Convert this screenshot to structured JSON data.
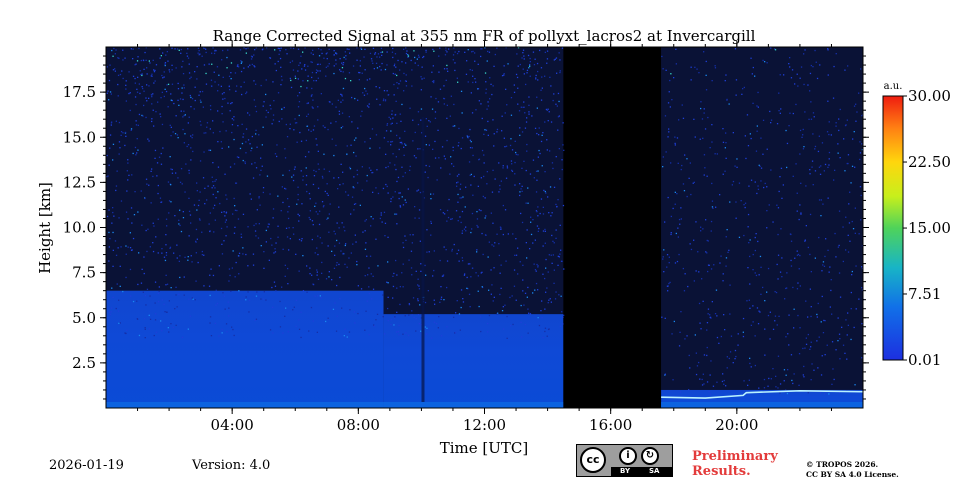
{
  "chart_data": {
    "type": "heatmap",
    "title": "Range Corrected Signal at 355 nm FR of pollyxt_lacros2 at Invercargill",
    "xlabel": "Time [UTC]",
    "ylabel": "Height [km]",
    "xlim_hours": [
      0,
      24
    ],
    "ylim_km": [
      0,
      20
    ],
    "x_ticks": [
      {
        "h": 4,
        "label": "04:00"
      },
      {
        "h": 8,
        "label": "08:00"
      },
      {
        "h": 12,
        "label": "12:00"
      },
      {
        "h": 16,
        "label": "16:00"
      },
      {
        "h": 20,
        "label": "20:00"
      }
    ],
    "y_ticks": [
      {
        "v": 2.5,
        "label": "2.5"
      },
      {
        "v": 5.0,
        "label": "5.0"
      },
      {
        "v": 7.5,
        "label": "7.5"
      },
      {
        "v": 10.0,
        "label": "10.0"
      },
      {
        "v": 12.5,
        "label": "12.5"
      },
      {
        "v": 15.0,
        "label": "15.0"
      },
      {
        "v": 17.5,
        "label": "17.5"
      }
    ],
    "colorbar": {
      "unit": "a.u.",
      "range": [
        0.01,
        30.0
      ],
      "ticks": [
        {
          "v": 0.01,
          "label": "0.01"
        },
        {
          "v": 7.51,
          "label": "7.51"
        },
        {
          "v": 15.0,
          "label": "15.00"
        },
        {
          "v": 22.5,
          "label": "22.50"
        },
        {
          "v": 30.0,
          "label": "30.00"
        }
      ]
    },
    "regions": [
      {
        "name": "noisy-signal-morning",
        "x0_h": 0,
        "x1_h": 8.8,
        "dense_top_km": 6.5
      },
      {
        "name": "noisy-signal-noon",
        "x0_h": 8.8,
        "x1_h": 14.5,
        "dense_top_km": 5.2
      },
      {
        "name": "no-data-gap",
        "x0_h": 14.5,
        "x1_h": 17.6
      },
      {
        "name": "sparse-signal-evening",
        "x0_h": 17.6,
        "x1_h": 24,
        "dense_top_km": 1.0
      }
    ],
    "features": [
      {
        "name": "vertical-streak",
        "x_h": 10.05
      }
    ]
  },
  "footer": {
    "date": "2026-01-19",
    "version": "Version: 4.0",
    "cc_by": "BY",
    "cc_sa": "SA",
    "cc_logo": "cc",
    "prelim_line1": "Preliminary",
    "prelim_line2": "Results.",
    "copy_line1": "© TROPOS 2026.",
    "copy_line2": "CC BY SA 4.0 License."
  }
}
